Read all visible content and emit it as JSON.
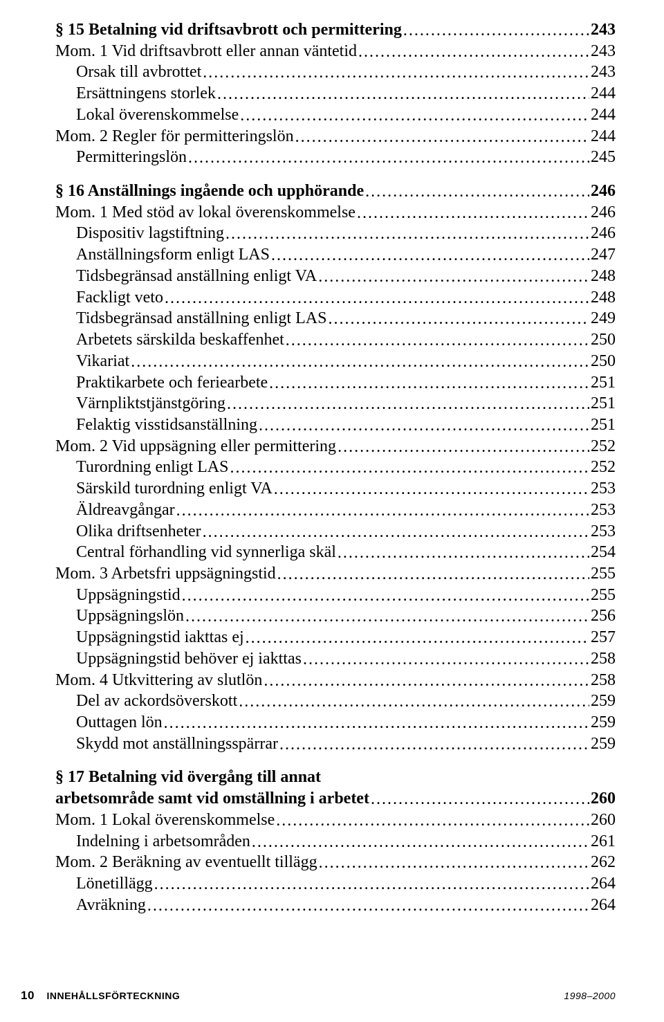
{
  "footer": {
    "page_number": "10",
    "section_label": "INNEHÅLLSFÖRTECKNING",
    "year_range": "1998–2000"
  },
  "toc": [
    {
      "title": "§ 15 Betalning vid driftsavbrott och permittering",
      "page": "243",
      "bold": true,
      "indent": false,
      "space_before": false
    },
    {
      "title": "Mom. 1  Vid driftsavbrott eller annan väntetid",
      "page": "243",
      "bold": false,
      "indent": false,
      "space_before": false
    },
    {
      "title": "Orsak till avbrottet",
      "page": "243",
      "bold": false,
      "indent": true,
      "space_before": false
    },
    {
      "title": "Ersättningens storlek",
      "page": "244",
      "bold": false,
      "indent": true,
      "space_before": false
    },
    {
      "title": "Lokal överenskommelse",
      "page": "244",
      "bold": false,
      "indent": true,
      "space_before": false
    },
    {
      "title": "Mom. 2  Regler för permitteringslön",
      "page": "244",
      "bold": false,
      "indent": false,
      "space_before": false
    },
    {
      "title": "Permitteringslön",
      "page": "245",
      "bold": false,
      "indent": true,
      "space_before": false
    },
    {
      "title": "§ 16 Anställnings ingående och upphörande",
      "page": "246",
      "bold": true,
      "indent": false,
      "space_before": true
    },
    {
      "title": "Mom. 1  Med stöd av lokal överenskommelse",
      "page": "246",
      "bold": false,
      "indent": false,
      "space_before": false
    },
    {
      "title": "Dispositiv lagstiftning",
      "page": "246",
      "bold": false,
      "indent": true,
      "space_before": false
    },
    {
      "title": "Anställningsform enligt LAS",
      "page": "247",
      "bold": false,
      "indent": true,
      "space_before": false
    },
    {
      "title": "Tidsbegränsad anställning enligt VA",
      "page": "248",
      "bold": false,
      "indent": true,
      "space_before": false
    },
    {
      "title": "Fackligt veto",
      "page": "248",
      "bold": false,
      "indent": true,
      "space_before": false
    },
    {
      "title": "Tidsbegränsad anställning enligt LAS",
      "page": "249",
      "bold": false,
      "indent": true,
      "space_before": false
    },
    {
      "title": "Arbetets särskilda beskaffenhet",
      "page": "250",
      "bold": false,
      "indent": true,
      "space_before": false
    },
    {
      "title": "Vikariat",
      "page": "250",
      "bold": false,
      "indent": true,
      "space_before": false
    },
    {
      "title": "Praktikarbete och feriearbete",
      "page": "251",
      "bold": false,
      "indent": true,
      "space_before": false
    },
    {
      "title": "Värnpliktstjänstgöring",
      "page": "251",
      "bold": false,
      "indent": true,
      "space_before": false
    },
    {
      "title": "Felaktig visstidsanställning",
      "page": "251",
      "bold": false,
      "indent": true,
      "space_before": false
    },
    {
      "title": "Mom. 2  Vid uppsägning eller permittering",
      "page": "252",
      "bold": false,
      "indent": false,
      "space_before": false
    },
    {
      "title": "Turordning enligt LAS",
      "page": "252",
      "bold": false,
      "indent": true,
      "space_before": false
    },
    {
      "title": "Särskild turordning enligt VA",
      "page": "253",
      "bold": false,
      "indent": true,
      "space_before": false
    },
    {
      "title": "Äldreavgångar",
      "page": "253",
      "bold": false,
      "indent": true,
      "space_before": false
    },
    {
      "title": "Olika driftsenheter",
      "page": "253",
      "bold": false,
      "indent": true,
      "space_before": false
    },
    {
      "title": "Central förhandling vid synnerliga skäl",
      "page": "254",
      "bold": false,
      "indent": true,
      "space_before": false
    },
    {
      "title": "Mom. 3  Arbetsfri uppsägningstid",
      "page": "255",
      "bold": false,
      "indent": false,
      "space_before": false
    },
    {
      "title": "Uppsägningstid",
      "page": "255",
      "bold": false,
      "indent": true,
      "space_before": false
    },
    {
      "title": "Uppsägningslön",
      "page": "256",
      "bold": false,
      "indent": true,
      "space_before": false
    },
    {
      "title": "Uppsägningstid iakttas ej",
      "page": "257",
      "bold": false,
      "indent": true,
      "space_before": false
    },
    {
      "title": "Uppsägningstid behöver ej iakttas",
      "page": "258",
      "bold": false,
      "indent": true,
      "space_before": false
    },
    {
      "title": "Mom. 4  Utkvittering av slutlön",
      "page": "258",
      "bold": false,
      "indent": false,
      "space_before": false
    },
    {
      "title": "Del av ackordsöverskott",
      "page": "259",
      "bold": false,
      "indent": true,
      "space_before": false
    },
    {
      "title": "Outtagen lön",
      "page": "259",
      "bold": false,
      "indent": true,
      "space_before": false
    },
    {
      "title": "Skydd mot anställningsspärrar",
      "page": "259",
      "bold": false,
      "indent": true,
      "space_before": false
    },
    {
      "title": "§ 17 Betalning vid övergång till annat",
      "page": "",
      "bold": true,
      "indent": false,
      "space_before": true,
      "no_leader": true
    },
    {
      "title": "arbetsområde samt vid omställning i arbetet",
      "page": "260",
      "bold": true,
      "indent": false,
      "space_before": false
    },
    {
      "title": "Mom. 1  Lokal överenskommelse",
      "page": "260",
      "bold": false,
      "indent": false,
      "space_before": false
    },
    {
      "title": "Indelning i arbetsområden",
      "page": "261",
      "bold": false,
      "indent": true,
      "space_before": false
    },
    {
      "title": "Mom. 2  Beräkning av eventuellt tillägg",
      "page": "262",
      "bold": false,
      "indent": false,
      "space_before": false
    },
    {
      "title": "Lönetillägg",
      "page": "264",
      "bold": false,
      "indent": true,
      "space_before": false
    },
    {
      "title": "Avräkning",
      "page": "264",
      "bold": false,
      "indent": true,
      "space_before": false
    }
  ]
}
